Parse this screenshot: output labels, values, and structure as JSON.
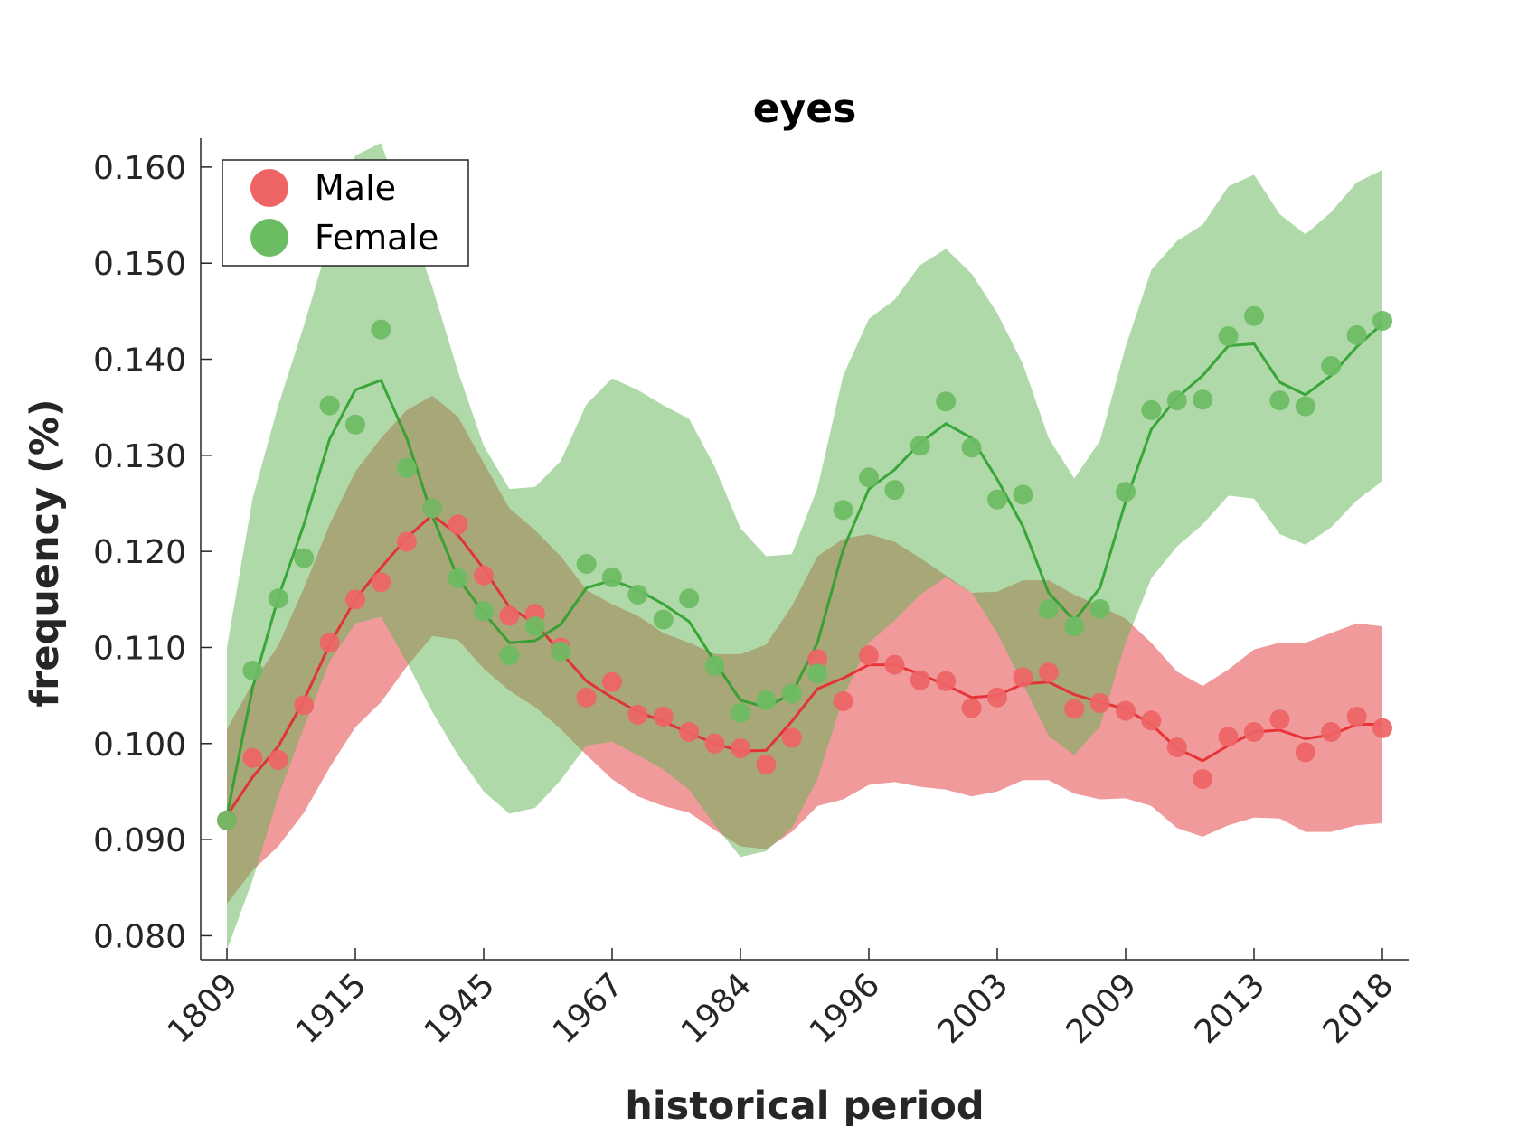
{
  "chart_data": {
    "type": "scatter",
    "title": "eyes",
    "xlabel": "historical period",
    "ylabel": "frequency (%)",
    "x_tick_labels": [
      "1809",
      "1915",
      "1945",
      "1967",
      "1984",
      "1996",
      "2003",
      "2009",
      "2013",
      "2018"
    ],
    "x_tick_index": [
      0,
      5,
      10,
      15,
      20,
      25,
      30,
      35,
      40,
      45
    ],
    "y_ticks": [
      0.08,
      0.09,
      0.1,
      0.11,
      0.12,
      0.13,
      0.14,
      0.15,
      0.16
    ],
    "y_tick_labels": [
      "0.080",
      "0.090",
      "0.100",
      "0.110",
      "0.120",
      "0.130",
      "0.140",
      "0.150",
      "0.160"
    ],
    "ylim": [
      0.0775,
      0.163
    ],
    "grid": false,
    "legend": {
      "position": "top-left",
      "entries": [
        "Male",
        "Female"
      ]
    },
    "series": [
      {
        "name": "Male",
        "color": "#e8282d",
        "fill_color": "#f19a9b",
        "marker_color": "#ee6465",
        "points": [
          0.092,
          0.0985,
          0.0983,
          0.104,
          0.1105,
          0.115,
          0.1168,
          0.121,
          0.1245,
          0.1228,
          0.1175,
          0.1133,
          0.1135,
          0.11,
          0.1048,
          0.1064,
          0.103,
          0.1028,
          0.1012,
          0.1,
          0.0995,
          0.0978,
          0.1006,
          0.1088,
          0.1044,
          0.1092,
          0.1082,
          0.1066,
          0.1065,
          0.1037,
          0.1048,
          0.1069,
          0.1074,
          0.1036,
          0.1042,
          0.1034,
          0.1024,
          0.0996,
          0.0963,
          0.1007,
          0.1012,
          0.1025,
          0.0991,
          0.1012,
          0.1028,
          0.1016
        ],
        "trend": [
          0.0925,
          0.0965,
          0.0997,
          0.1045,
          0.1103,
          0.115,
          0.1183,
          0.1214,
          0.1238,
          0.1217,
          0.1182,
          0.1142,
          0.1125,
          0.1095,
          0.1065,
          0.1048,
          0.1033,
          0.1023,
          0.1011,
          0.1,
          0.0992,
          0.0993,
          0.1023,
          0.1057,
          0.1068,
          0.1082,
          0.1082,
          0.1072,
          0.1061,
          0.1048,
          0.105,
          0.1062,
          0.1064,
          0.1051,
          0.1043,
          0.1036,
          0.102,
          0.0995,
          0.0982,
          0.0998,
          0.1012,
          0.1014,
          0.1005,
          0.1009,
          0.102,
          0.102
        ],
        "band_upper": [
          0.1015,
          0.1063,
          0.1102,
          0.1162,
          0.1228,
          0.1283,
          0.1318,
          0.1347,
          0.1362,
          0.134,
          0.1292,
          0.1245,
          0.1222,
          0.1195,
          0.116,
          0.1145,
          0.1133,
          0.1115,
          0.1105,
          0.1093,
          0.1093,
          0.1103,
          0.1143,
          0.1195,
          0.1213,
          0.1218,
          0.121,
          0.1193,
          0.1175,
          0.1157,
          0.1158,
          0.117,
          0.117,
          0.1155,
          0.1143,
          0.113,
          0.1105,
          0.1075,
          0.106,
          0.1077,
          0.1098,
          0.1105,
          0.1105,
          0.1115,
          0.1125,
          0.1122
        ],
        "band_lower": [
          0.0833,
          0.0868,
          0.0893,
          0.0928,
          0.0975,
          0.1017,
          0.1043,
          0.108,
          0.1112,
          0.1108,
          0.1078,
          0.1055,
          0.1038,
          0.1015,
          0.0988,
          0.0963,
          0.0945,
          0.0935,
          0.0928,
          0.091,
          0.0893,
          0.089,
          0.0908,
          0.0935,
          0.0942,
          0.0957,
          0.096,
          0.0955,
          0.0952,
          0.0945,
          0.095,
          0.0962,
          0.0962,
          0.0948,
          0.0942,
          0.0943,
          0.0935,
          0.0912,
          0.0903,
          0.0915,
          0.0923,
          0.0922,
          0.0908,
          0.0908,
          0.0915,
          0.0917
        ]
      },
      {
        "name": "Female",
        "color": "#2ca02c",
        "fill_color": "#afd9a7",
        "marker_color": "#6cbc63",
        "points": [
          0.092,
          0.1076,
          0.1151,
          0.1193,
          0.1352,
          0.1332,
          0.1431,
          0.1287,
          0.1245,
          0.1172,
          0.1138,
          0.1092,
          0.1122,
          0.1096,
          0.1187,
          0.1173,
          0.1155,
          0.1129,
          0.1151,
          0.1081,
          0.1032,
          0.1045,
          0.1052,
          0.1073,
          0.1243,
          0.1277,
          0.1264,
          0.131,
          0.1356,
          0.1308,
          0.1254,
          0.1259,
          0.114,
          0.1122,
          0.114,
          0.1262,
          0.1347,
          0.1357,
          0.1358,
          0.1424,
          0.1445,
          0.1357,
          0.1351,
          0.1393,
          0.1425,
          0.144
        ],
        "trend": [
          0.0925,
          0.1058,
          0.1152,
          0.1228,
          0.1317,
          0.1368,
          0.1378,
          0.1318,
          0.1237,
          0.1172,
          0.1136,
          0.1105,
          0.1107,
          0.1124,
          0.1162,
          0.117,
          0.116,
          0.1145,
          0.1127,
          0.1085,
          0.1045,
          0.1038,
          0.1052,
          0.1105,
          0.1202,
          0.1265,
          0.1285,
          0.1313,
          0.1333,
          0.1318,
          0.1275,
          0.1226,
          0.1157,
          0.1128,
          0.1162,
          0.1252,
          0.1327,
          0.136,
          0.1383,
          0.1414,
          0.1416,
          0.1376,
          0.1363,
          0.1383,
          0.1413,
          0.1437
        ],
        "band_upper": [
          0.11,
          0.1255,
          0.1352,
          0.1435,
          0.1525,
          0.1612,
          0.1625,
          0.155,
          0.1475,
          0.1387,
          0.131,
          0.1265,
          0.1267,
          0.1294,
          0.1353,
          0.138,
          0.1368,
          0.1352,
          0.1338,
          0.1288,
          0.1224,
          0.1195,
          0.1197,
          0.1266,
          0.1383,
          0.1442,
          0.1462,
          0.1498,
          0.1515,
          0.1489,
          0.1448,
          0.1395,
          0.1318,
          0.1276,
          0.1315,
          0.1413,
          0.1493,
          0.1523,
          0.154,
          0.158,
          0.1592,
          0.1551,
          0.153,
          0.1553,
          0.1584,
          0.1597
        ],
        "band_lower": [
          0.0785,
          0.0858,
          0.0945,
          0.1017,
          0.1085,
          0.1125,
          0.1132,
          0.1085,
          0.1033,
          0.0988,
          0.095,
          0.0927,
          0.0933,
          0.0962,
          0.0998,
          0.1002,
          0.0988,
          0.0973,
          0.0952,
          0.0915,
          0.0882,
          0.0888,
          0.0912,
          0.0963,
          0.1048,
          0.1105,
          0.1128,
          0.1155,
          0.1173,
          0.1157,
          0.1115,
          0.1062,
          0.1008,
          0.0988,
          0.1018,
          0.1105,
          0.1172,
          0.1205,
          0.1228,
          0.1258,
          0.1255,
          0.1218,
          0.1207,
          0.1225,
          0.1253,
          0.1273
        ]
      }
    ]
  }
}
